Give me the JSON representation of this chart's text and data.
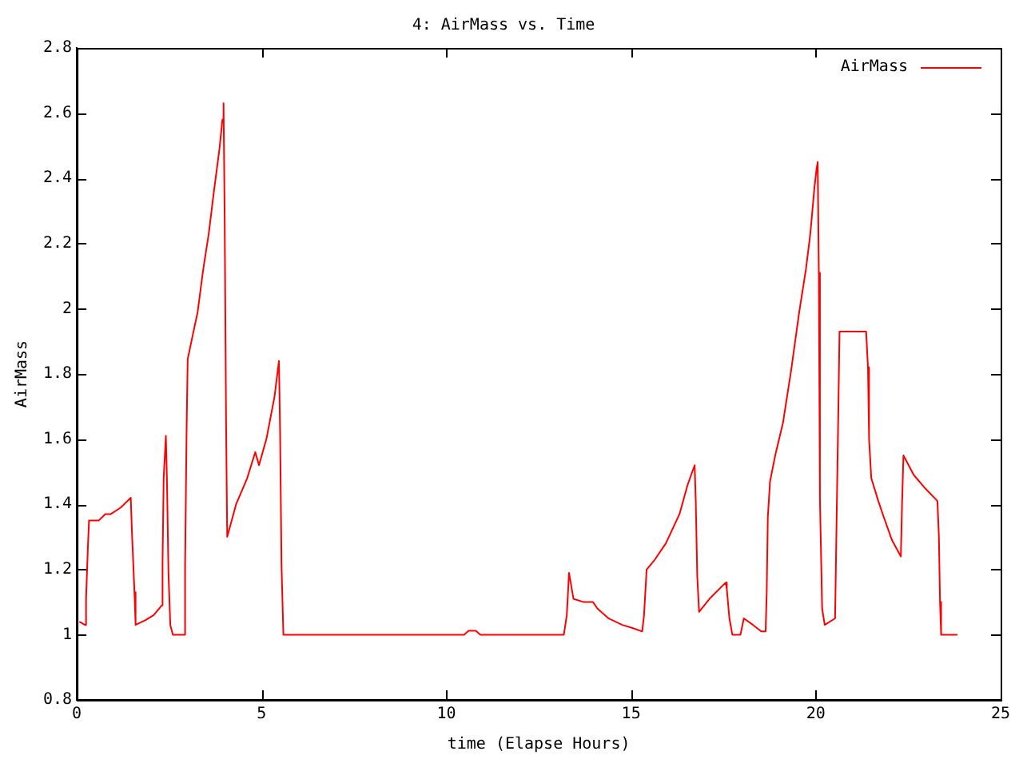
{
  "chart_data": {
    "type": "line",
    "title": "4: AirMass vs. Time",
    "xlabel": "time (Elapse Hours)",
    "ylabel": "AirMass",
    "xlim": [
      0,
      25
    ],
    "xticks": [
      0,
      5,
      10,
      15,
      20,
      25
    ],
    "ylim": [
      0.8,
      2.8
    ],
    "yticks": [
      0.8,
      1,
      1.2,
      1.4,
      1.6,
      1.8,
      2,
      2.2,
      2.4,
      2.6,
      2.8
    ],
    "grid": false,
    "legend": "top right",
    "marker": "none",
    "line_style": "solid",
    "series": [
      {
        "name": "AirMass",
        "color": "#ff0000",
        "x": [
          0.07,
          0.22,
          0.25,
          0.3,
          0.33,
          0.59,
          0.77,
          0.92,
          1.19,
          1.46,
          1.49,
          1.56,
          1.59,
          1.86,
          2.08,
          2.3,
          2.32,
          2.35,
          2.41,
          2.44,
          2.48,
          2.53,
          2.6,
          2.9,
          2.93,
          2.97,
          3.0,
          3.12,
          3.27,
          3.42,
          3.57,
          3.71,
          3.86,
          3.94,
          3.97,
          4.0,
          4.04,
          4.07,
          4.31,
          4.61,
          4.83,
          4.93,
          5.13,
          5.35,
          5.47,
          5.5,
          5.54,
          5.59,
          10.48,
          10.6,
          10.8,
          10.92,
          13.18,
          13.26,
          13.32,
          13.38,
          13.44,
          13.72,
          13.97,
          14.09,
          14.39,
          14.76,
          15.05,
          15.3,
          15.35,
          15.42,
          15.64,
          15.94,
          16.31,
          16.53,
          16.72,
          16.75,
          16.79,
          16.84,
          17.12,
          17.56,
          17.59,
          17.66,
          17.74,
          17.96,
          18.05,
          18.3,
          18.52,
          18.64,
          18.67,
          18.7,
          18.76,
          18.9,
          19.11,
          19.33,
          19.55,
          19.73,
          19.85,
          19.96,
          20.02,
          20.05,
          20.08,
          20.11,
          20.17,
          20.24,
          20.52,
          20.55,
          20.61,
          20.64,
          21.36,
          21.41,
          21.44,
          21.5,
          21.69,
          21.84,
          22.06,
          22.3,
          22.33,
          22.37,
          22.65,
          22.95,
          23.29,
          23.33,
          23.36,
          23.39,
          23.83
        ],
        "values": [
          1.04,
          1.03,
          1.11,
          1.27,
          1.35,
          1.35,
          1.37,
          1.37,
          1.39,
          1.42,
          1.32,
          1.13,
          1.03,
          1.045,
          1.06,
          1.09,
          1.22,
          1.48,
          1.61,
          1.47,
          1.19,
          1.03,
          1.0,
          1.0,
          1.21,
          1.62,
          1.845,
          1.91,
          1.99,
          2.12,
          2.23,
          2.36,
          2.49,
          2.58,
          2.63,
          2.29,
          1.64,
          1.3,
          1.4,
          1.48,
          1.56,
          1.52,
          1.6,
          1.73,
          1.84,
          1.63,
          1.21,
          1.0,
          1.0,
          1.012,
          1.012,
          1.0,
          1.0,
          1.06,
          1.19,
          1.15,
          1.11,
          1.1,
          1.1,
          1.08,
          1.05,
          1.03,
          1.02,
          1.01,
          1.06,
          1.2,
          1.23,
          1.28,
          1.37,
          1.46,
          1.52,
          1.41,
          1.18,
          1.07,
          1.11,
          1.16,
          1.14,
          1.05,
          1.0,
          1.0,
          1.05,
          1.03,
          1.01,
          1.01,
          1.13,
          1.36,
          1.47,
          1.55,
          1.65,
          1.81,
          1.99,
          2.12,
          2.23,
          2.37,
          2.43,
          2.45,
          2.11,
          1.42,
          1.08,
          1.03,
          1.05,
          1.27,
          1.7,
          1.93,
          1.93,
          1.82,
          1.6,
          1.48,
          1.41,
          1.36,
          1.29,
          1.24,
          1.39,
          1.55,
          1.49,
          1.45,
          1.41,
          1.3,
          1.1,
          1.0,
          1.0
        ]
      }
    ]
  }
}
